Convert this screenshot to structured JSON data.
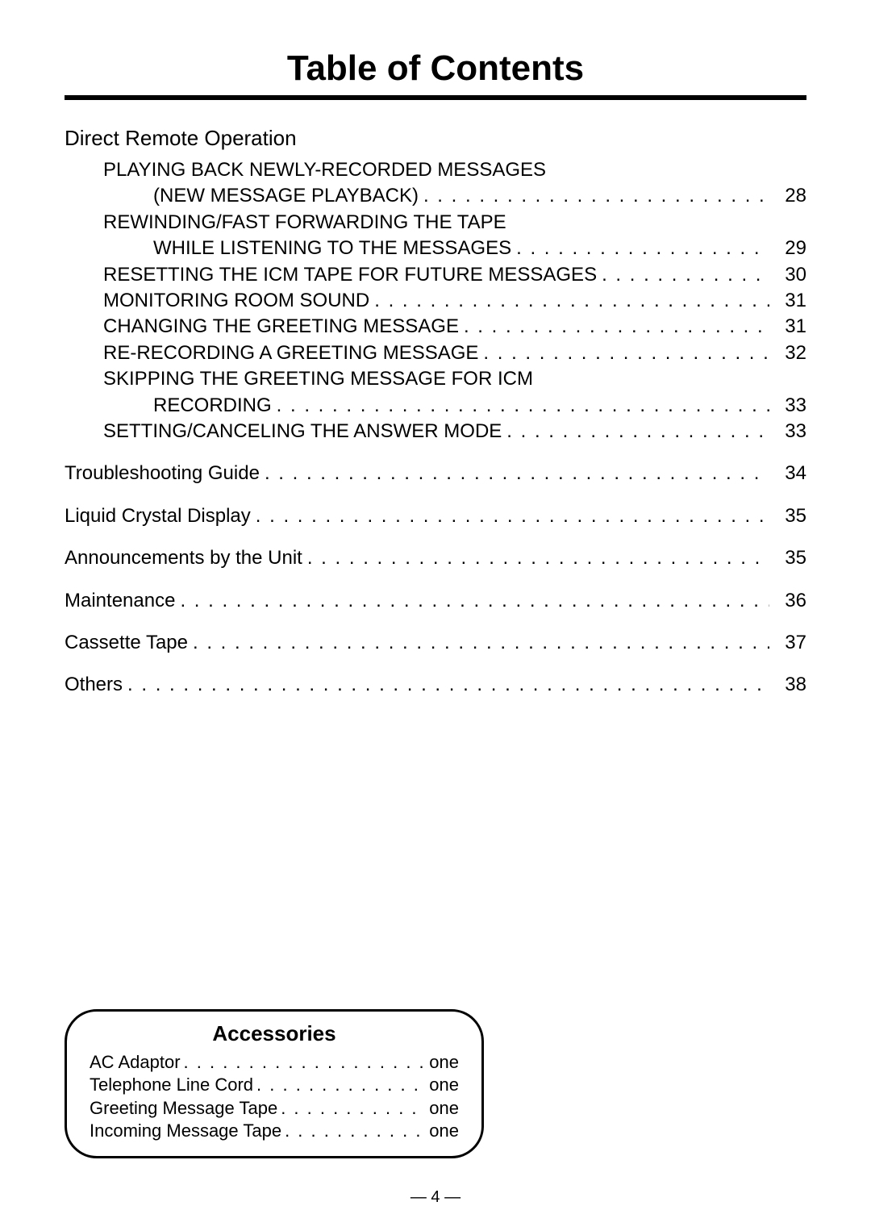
{
  "title": "Table of Contents",
  "dots": ". . . . . . . . . . . . . . . . . . . . . . . . . . . . . . . . . . . . . . . . . . . . . . . . . . . . . . . . . . . . . . . . . . . . . . . . . . . . . . . . . . . . . . . . . . . . . . . . . . . .",
  "section_header": "Direct Remote Operation",
  "toc": [
    {
      "label": "PLAYING BACK NEWLY-RECORDED MESSAGES",
      "indent": 1,
      "page": ""
    },
    {
      "label": "(NEW MESSAGE PLAYBACK)",
      "indent": 2,
      "page": "28"
    },
    {
      "label": "REWINDING/FAST FORWARDING THE TAPE",
      "indent": 1,
      "page": ""
    },
    {
      "label": "WHILE LISTENING TO THE MESSAGES",
      "indent": 2,
      "page": "29"
    },
    {
      "label": "RESETTING THE ICM TAPE FOR FUTURE MESSAGES",
      "indent": 1,
      "page": "30"
    },
    {
      "label": "MONITORING ROOM SOUND",
      "indent": 1,
      "page": "31"
    },
    {
      "label": "CHANGING THE GREETING MESSAGE",
      "indent": 1,
      "page": "31"
    },
    {
      "label": "RE-RECORDING A GREETING MESSAGE",
      "indent": 1,
      "page": "32"
    },
    {
      "label": "SKIPPING THE GREETING MESSAGE FOR ICM",
      "indent": 1,
      "page": ""
    },
    {
      "label": "RECORDING",
      "indent": 2,
      "page": "33"
    },
    {
      "label": "SETTING/CANCELING THE ANSWER MODE",
      "indent": 1,
      "page": "33"
    }
  ],
  "toc2": [
    {
      "label": "Troubleshooting Guide",
      "page": "34"
    },
    {
      "label": "Liquid Crystal Display",
      "page": "35"
    },
    {
      "label": "Announcements by the Unit",
      "page": "35"
    },
    {
      "label": "Maintenance",
      "page": "36"
    },
    {
      "label": "Cassette Tape",
      "page": "37"
    },
    {
      "label": "Others",
      "page": "38"
    }
  ],
  "accessories": {
    "title": "Accessories",
    "items": [
      {
        "label": "AC Adaptor",
        "qty": "one"
      },
      {
        "label": "Telephone Line Cord",
        "qty": "one"
      },
      {
        "label": "Greeting Message Tape",
        "qty": "one"
      },
      {
        "label": "Incoming Message Tape",
        "qty": "one"
      }
    ]
  },
  "page_number": "— 4 —"
}
